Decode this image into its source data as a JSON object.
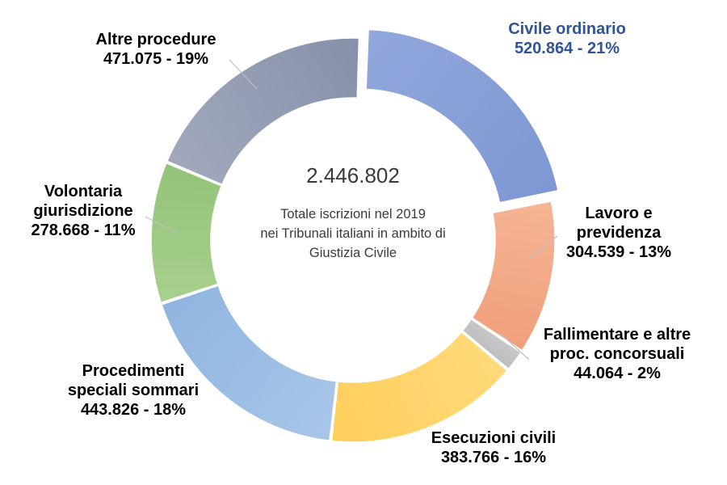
{
  "chart_data": {
    "type": "donut",
    "center_total": "2.446.802",
    "center_text": [
      "Totale iscrizioni nel 2019",
      "nei Tribunali italiani in ambito di",
      "Giustizia Civile"
    ],
    "slices": [
      {
        "name": [
          "Civile ordinario"
        ],
        "value_label": "520.864 - 21%",
        "value": 520864,
        "color": "#92a8dc",
        "color2": "#7e96d2",
        "label_color": "#2f5597"
      },
      {
        "name": [
          "Lavoro e",
          "previdenza"
        ],
        "value_label": "304.539 - 13%",
        "value": 304539,
        "color": "#f5b594",
        "color2": "#f19f7c",
        "label_color": "#000000"
      },
      {
        "name": [
          "Fallimentare e altre",
          "proc. concorsuali"
        ],
        "value_label": "44.064 - 2%",
        "value": 44064,
        "color": "#c9c9c9",
        "color2": "#bdbdbd",
        "label_color": "#000000"
      },
      {
        "name": [
          "Esecuzioni civili"
        ],
        "value_label": "383.766 - 16%",
        "value": 383766,
        "color": "#ffd97a",
        "color2": "#ffcf5c",
        "label_color": "#000000"
      },
      {
        "name": [
          "Procedimenti",
          "speciali sommari"
        ],
        "value_label": "443.826 - 18%",
        "value": 443826,
        "color": "#a9c6e8",
        "color2": "#8fb5e0",
        "label_color": "#000000"
      },
      {
        "name": [
          "Volontaria",
          "giurisdizione"
        ],
        "value_label": "278.668 - 11%",
        "value": 278668,
        "color": "#a8d08d",
        "color2": "#93c378",
        "label_color": "#000000"
      },
      {
        "name": [
          "Altre procedure"
        ],
        "value_label": "471.075 - 19%",
        "value": 471075,
        "color": "#a2a9bd",
        "color2": "#8690aa",
        "label_color": "#000000"
      }
    ]
  }
}
